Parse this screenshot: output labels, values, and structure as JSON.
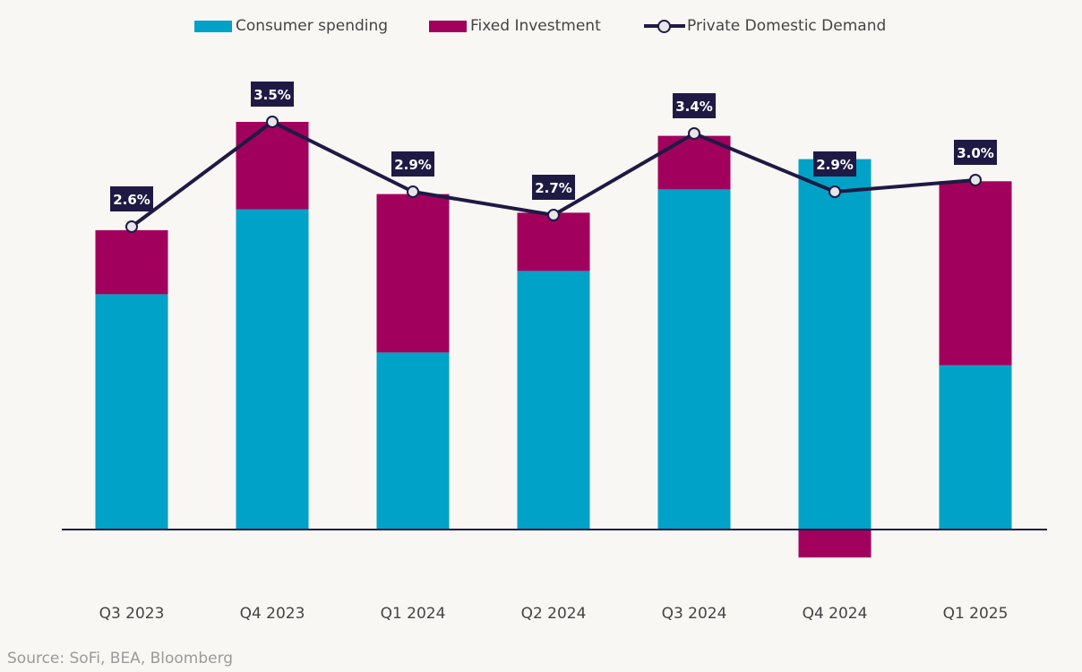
{
  "chart_data": {
    "type": "bar",
    "stacked": true,
    "title": "",
    "xlabel": "",
    "ylabel": "",
    "categories": [
      "Q3 2023",
      "Q4 2023",
      "Q1 2024",
      "Q2 2024",
      "Q3 2024",
      "Q4 2024",
      "Q1 2025"
    ],
    "series": [
      {
        "name": "Consumer spending",
        "kind": "bar",
        "color": "#00a2c7",
        "values": [
          2.02,
          2.75,
          1.52,
          2.22,
          2.92,
          3.18,
          1.41
        ]
      },
      {
        "name": "Fixed Investment",
        "kind": "bar",
        "color": "#a2005d",
        "values": [
          0.55,
          0.75,
          1.36,
          0.5,
          0.46,
          -0.24,
          1.58
        ]
      },
      {
        "name": "Private Domestic Demand",
        "kind": "line",
        "color": "#1f1a44",
        "values": [
          2.6,
          3.5,
          2.9,
          2.7,
          3.4,
          2.9,
          3.0
        ],
        "labels": [
          "2.6%",
          "3.5%",
          "2.9%",
          "2.7%",
          "3.4%",
          "2.9%",
          "3.0%"
        ]
      }
    ],
    "ylim": [
      -0.6,
      3.9
    ],
    "grid": false,
    "y_axis_visible": false,
    "legend_position": "top-center"
  },
  "legend": {
    "items": [
      "Consumer spending",
      "Fixed Investment",
      "Private Domestic Demand"
    ]
  },
  "source": "Source: SoFi, BEA, Bloomberg"
}
